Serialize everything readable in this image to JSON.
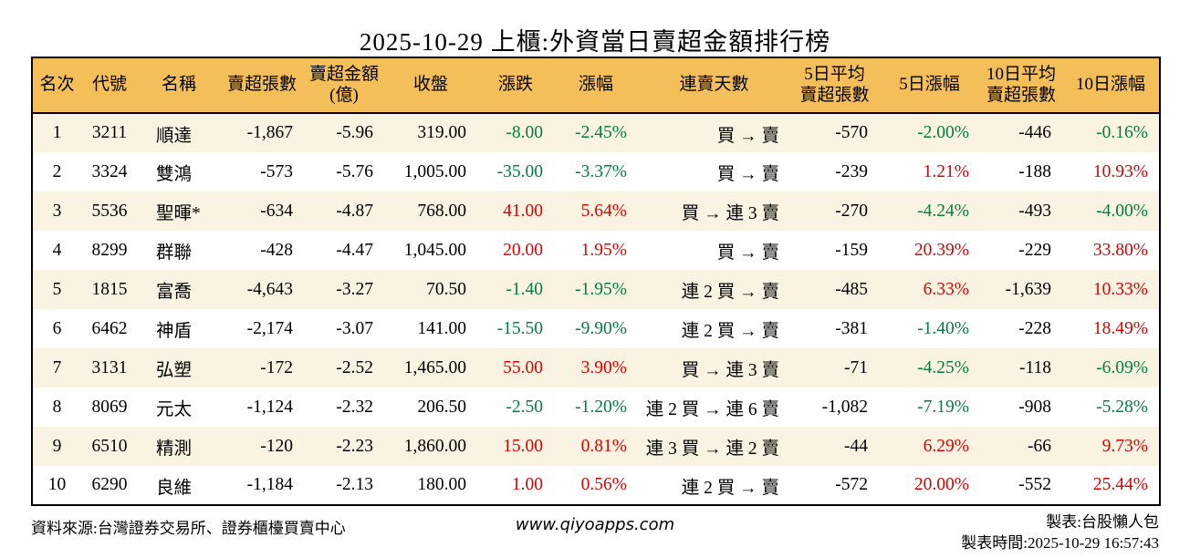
{
  "title": "2025-10-29 上櫃:外資當日賣超金額排行榜",
  "colors": {
    "header_bg": "#F4BF58",
    "row_alt_bg": "#FBF3E1",
    "row_bg": "#FFFFFF",
    "up_red": "#DD0000",
    "down_green": "#007F40",
    "border": "#000000"
  },
  "table": {
    "headers": [
      "名次",
      "代號",
      "名稱",
      "賣超張數",
      "賣超金額\n(億)",
      "收盤",
      "漲跌",
      "漲幅",
      "連賣天數",
      "5日平均\n賣超張數",
      "5日漲幅",
      "10日平均\n賣超張數",
      "10日漲幅"
    ],
    "column_keys": [
      "rank",
      "code",
      "name",
      "sell-volume",
      "sell-amount",
      "close",
      "change",
      "change-pct",
      "streak",
      "avg5-sell-volume",
      "pct5",
      "avg10-sell-volume",
      "pct10"
    ],
    "column_aligns": [
      "center",
      "center",
      "left",
      "right",
      "right",
      "right",
      "right",
      "right",
      "right",
      "right",
      "right",
      "right",
      "right"
    ],
    "rows": [
      {
        "cells": [
          {
            "t": "1"
          },
          {
            "t": "3211"
          },
          {
            "t": "順達"
          },
          {
            "t": "-1,867"
          },
          {
            "t": "-5.96"
          },
          {
            "t": "319.00"
          },
          {
            "t": "-8.00",
            "c": "g"
          },
          {
            "t": "-2.45%",
            "c": "g"
          },
          {
            "t": "買 → 賣"
          },
          {
            "t": "-570"
          },
          {
            "t": "-2.00%",
            "c": "g"
          },
          {
            "t": "-446"
          },
          {
            "t": "-0.16%",
            "c": "g"
          }
        ]
      },
      {
        "cells": [
          {
            "t": "2"
          },
          {
            "t": "3324"
          },
          {
            "t": "雙鴻"
          },
          {
            "t": "-573"
          },
          {
            "t": "-5.76"
          },
          {
            "t": "1,005.00"
          },
          {
            "t": "-35.00",
            "c": "g"
          },
          {
            "t": "-3.37%",
            "c": "g"
          },
          {
            "t": "買 → 賣"
          },
          {
            "t": "-239"
          },
          {
            "t": "1.21%",
            "c": "r"
          },
          {
            "t": "-188"
          },
          {
            "t": "10.93%",
            "c": "r"
          }
        ]
      },
      {
        "cells": [
          {
            "t": "3"
          },
          {
            "t": "5536"
          },
          {
            "t": "聖暉*"
          },
          {
            "t": "-634"
          },
          {
            "t": "-4.87"
          },
          {
            "t": "768.00"
          },
          {
            "t": "41.00",
            "c": "r"
          },
          {
            "t": "5.64%",
            "c": "r"
          },
          {
            "t": "買 → 連 3 賣"
          },
          {
            "t": "-270"
          },
          {
            "t": "-4.24%",
            "c": "g"
          },
          {
            "t": "-493"
          },
          {
            "t": "-4.00%",
            "c": "g"
          }
        ]
      },
      {
        "cells": [
          {
            "t": "4"
          },
          {
            "t": "8299"
          },
          {
            "t": "群聯"
          },
          {
            "t": "-428"
          },
          {
            "t": "-4.47"
          },
          {
            "t": "1,045.00"
          },
          {
            "t": "20.00",
            "c": "r"
          },
          {
            "t": "1.95%",
            "c": "r"
          },
          {
            "t": "買 → 賣"
          },
          {
            "t": "-159"
          },
          {
            "t": "20.39%",
            "c": "r"
          },
          {
            "t": "-229"
          },
          {
            "t": "33.80%",
            "c": "r"
          }
        ]
      },
      {
        "cells": [
          {
            "t": "5"
          },
          {
            "t": "1815"
          },
          {
            "t": "富喬"
          },
          {
            "t": "-4,643"
          },
          {
            "t": "-3.27"
          },
          {
            "t": "70.50"
          },
          {
            "t": "-1.40",
            "c": "g"
          },
          {
            "t": "-1.95%",
            "c": "g"
          },
          {
            "t": "連 2 買 → 賣"
          },
          {
            "t": "-485"
          },
          {
            "t": "6.33%",
            "c": "r"
          },
          {
            "t": "-1,639"
          },
          {
            "t": "10.33%",
            "c": "r"
          }
        ]
      },
      {
        "cells": [
          {
            "t": "6"
          },
          {
            "t": "6462"
          },
          {
            "t": "神盾"
          },
          {
            "t": "-2,174"
          },
          {
            "t": "-3.07"
          },
          {
            "t": "141.00"
          },
          {
            "t": "-15.50",
            "c": "g"
          },
          {
            "t": "-9.90%",
            "c": "g"
          },
          {
            "t": "連 2 買 → 賣"
          },
          {
            "t": "-381"
          },
          {
            "t": "-1.40%",
            "c": "g"
          },
          {
            "t": "-228"
          },
          {
            "t": "18.49%",
            "c": "r"
          }
        ]
      },
      {
        "cells": [
          {
            "t": "7"
          },
          {
            "t": "3131"
          },
          {
            "t": "弘塑"
          },
          {
            "t": "-172"
          },
          {
            "t": "-2.52"
          },
          {
            "t": "1,465.00"
          },
          {
            "t": "55.00",
            "c": "r"
          },
          {
            "t": "3.90%",
            "c": "r"
          },
          {
            "t": "買 → 連 3 賣"
          },
          {
            "t": "-71"
          },
          {
            "t": "-4.25%",
            "c": "g"
          },
          {
            "t": "-118"
          },
          {
            "t": "-6.09%",
            "c": "g"
          }
        ]
      },
      {
        "cells": [
          {
            "t": "8"
          },
          {
            "t": "8069"
          },
          {
            "t": "元太"
          },
          {
            "t": "-1,124"
          },
          {
            "t": "-2.32"
          },
          {
            "t": "206.50"
          },
          {
            "t": "-2.50",
            "c": "g"
          },
          {
            "t": "-1.20%",
            "c": "g"
          },
          {
            "t": "連 2 買 → 連 6 賣"
          },
          {
            "t": "-1,082"
          },
          {
            "t": "-7.19%",
            "c": "g"
          },
          {
            "t": "-908"
          },
          {
            "t": "-5.28%",
            "c": "g"
          }
        ]
      },
      {
        "cells": [
          {
            "t": "9"
          },
          {
            "t": "6510"
          },
          {
            "t": "精測"
          },
          {
            "t": "-120"
          },
          {
            "t": "-2.23"
          },
          {
            "t": "1,860.00"
          },
          {
            "t": "15.00",
            "c": "r"
          },
          {
            "t": "0.81%",
            "c": "r"
          },
          {
            "t": "連 3 買 → 連 2 賣"
          },
          {
            "t": "-44"
          },
          {
            "t": "6.29%",
            "c": "r"
          },
          {
            "t": "-66"
          },
          {
            "t": "9.73%",
            "c": "r"
          }
        ]
      },
      {
        "cells": [
          {
            "t": "10"
          },
          {
            "t": "6290"
          },
          {
            "t": "良維"
          },
          {
            "t": "-1,184"
          },
          {
            "t": "-2.13"
          },
          {
            "t": "180.00"
          },
          {
            "t": "1.00",
            "c": "r"
          },
          {
            "t": "0.56%",
            "c": "r"
          },
          {
            "t": "連 2 買 → 賣"
          },
          {
            "t": "-572"
          },
          {
            "t": "20.00%",
            "c": "r"
          },
          {
            "t": "-552"
          },
          {
            "t": "25.44%",
            "c": "r"
          }
        ]
      }
    ]
  },
  "footer": {
    "source": "資料來源:台灣證券交易所、證券櫃檯買賣中心",
    "website": "www.qiyoapps.com",
    "author": "製表:台股懶人包",
    "generated": "製表時間:2025-10-29 16:57:43"
  }
}
